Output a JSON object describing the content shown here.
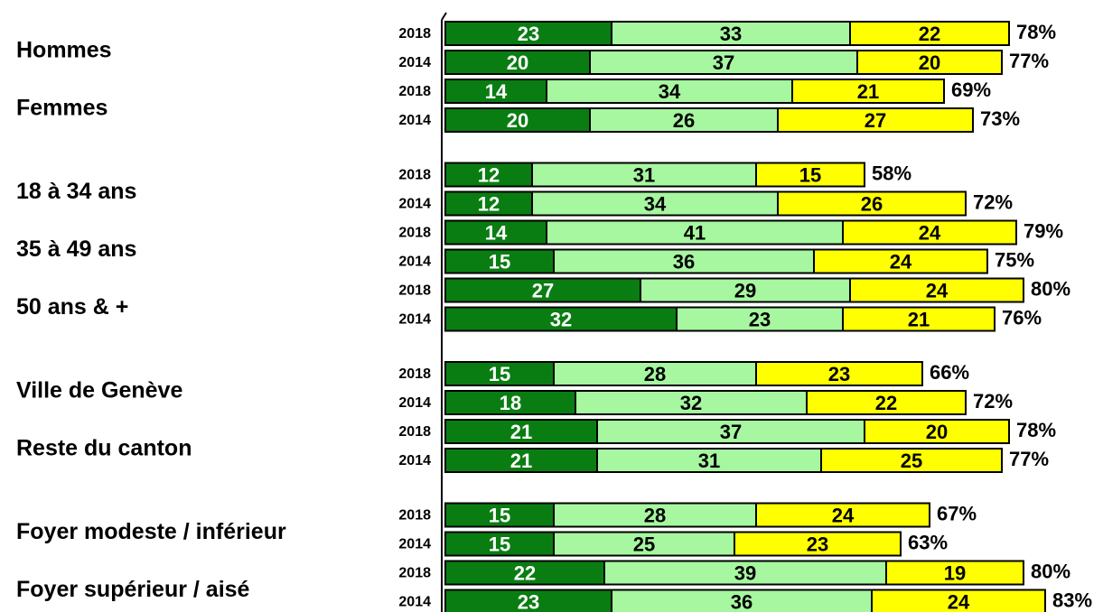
{
  "chart_data": {
    "type": "stacked-bar-horizontal",
    "groups": [
      "Hommes",
      "Femmes",
      "18 à 34 ans",
      "35 à 49 ans",
      "50 ans & +",
      "Ville de Genève",
      "Reste du canton",
      "Foyer modeste / inférieur",
      "Foyer supérieur / aisé"
    ],
    "categories": [
      "2018",
      "2014",
      "2018",
      "2014",
      "2018",
      "2014",
      "2018",
      "2014",
      "2018",
      "2014",
      "2018",
      "2014",
      "2018",
      "2014",
      "2018",
      "2014",
      "2018",
      "2014"
    ],
    "series": [
      {
        "color": "#0a7d12",
        "values": [
          23,
          20,
          14,
          20,
          12,
          12,
          14,
          15,
          27,
          32,
          15,
          18,
          21,
          21,
          15,
          15,
          22,
          23
        ]
      },
      {
        "color": "#a6f7a0",
        "values": [
          33,
          37,
          34,
          26,
          31,
          34,
          41,
          36,
          29,
          23,
          28,
          32,
          37,
          31,
          28,
          25,
          39,
          36
        ]
      },
      {
        "color": "#ffff00",
        "values": [
          22,
          20,
          21,
          27,
          15,
          26,
          24,
          24,
          24,
          21,
          23,
          22,
          20,
          25,
          24,
          23,
          19,
          24
        ]
      }
    ],
    "totals": [
      78,
      77,
      69,
      73,
      58,
      72,
      79,
      75,
      80,
      76,
      66,
      72,
      78,
      77,
      67,
      63,
      80,
      83
    ],
    "total_labels": [
      "78%",
      "77%",
      "69%",
      "73%",
      "58%",
      "72%",
      "79%",
      "75%",
      "80%",
      "76%",
      "66%",
      "72%",
      "78%",
      "77%",
      "67%",
      "63%",
      "80%",
      "83%"
    ],
    "xlim": [
      0,
      100
    ]
  }
}
